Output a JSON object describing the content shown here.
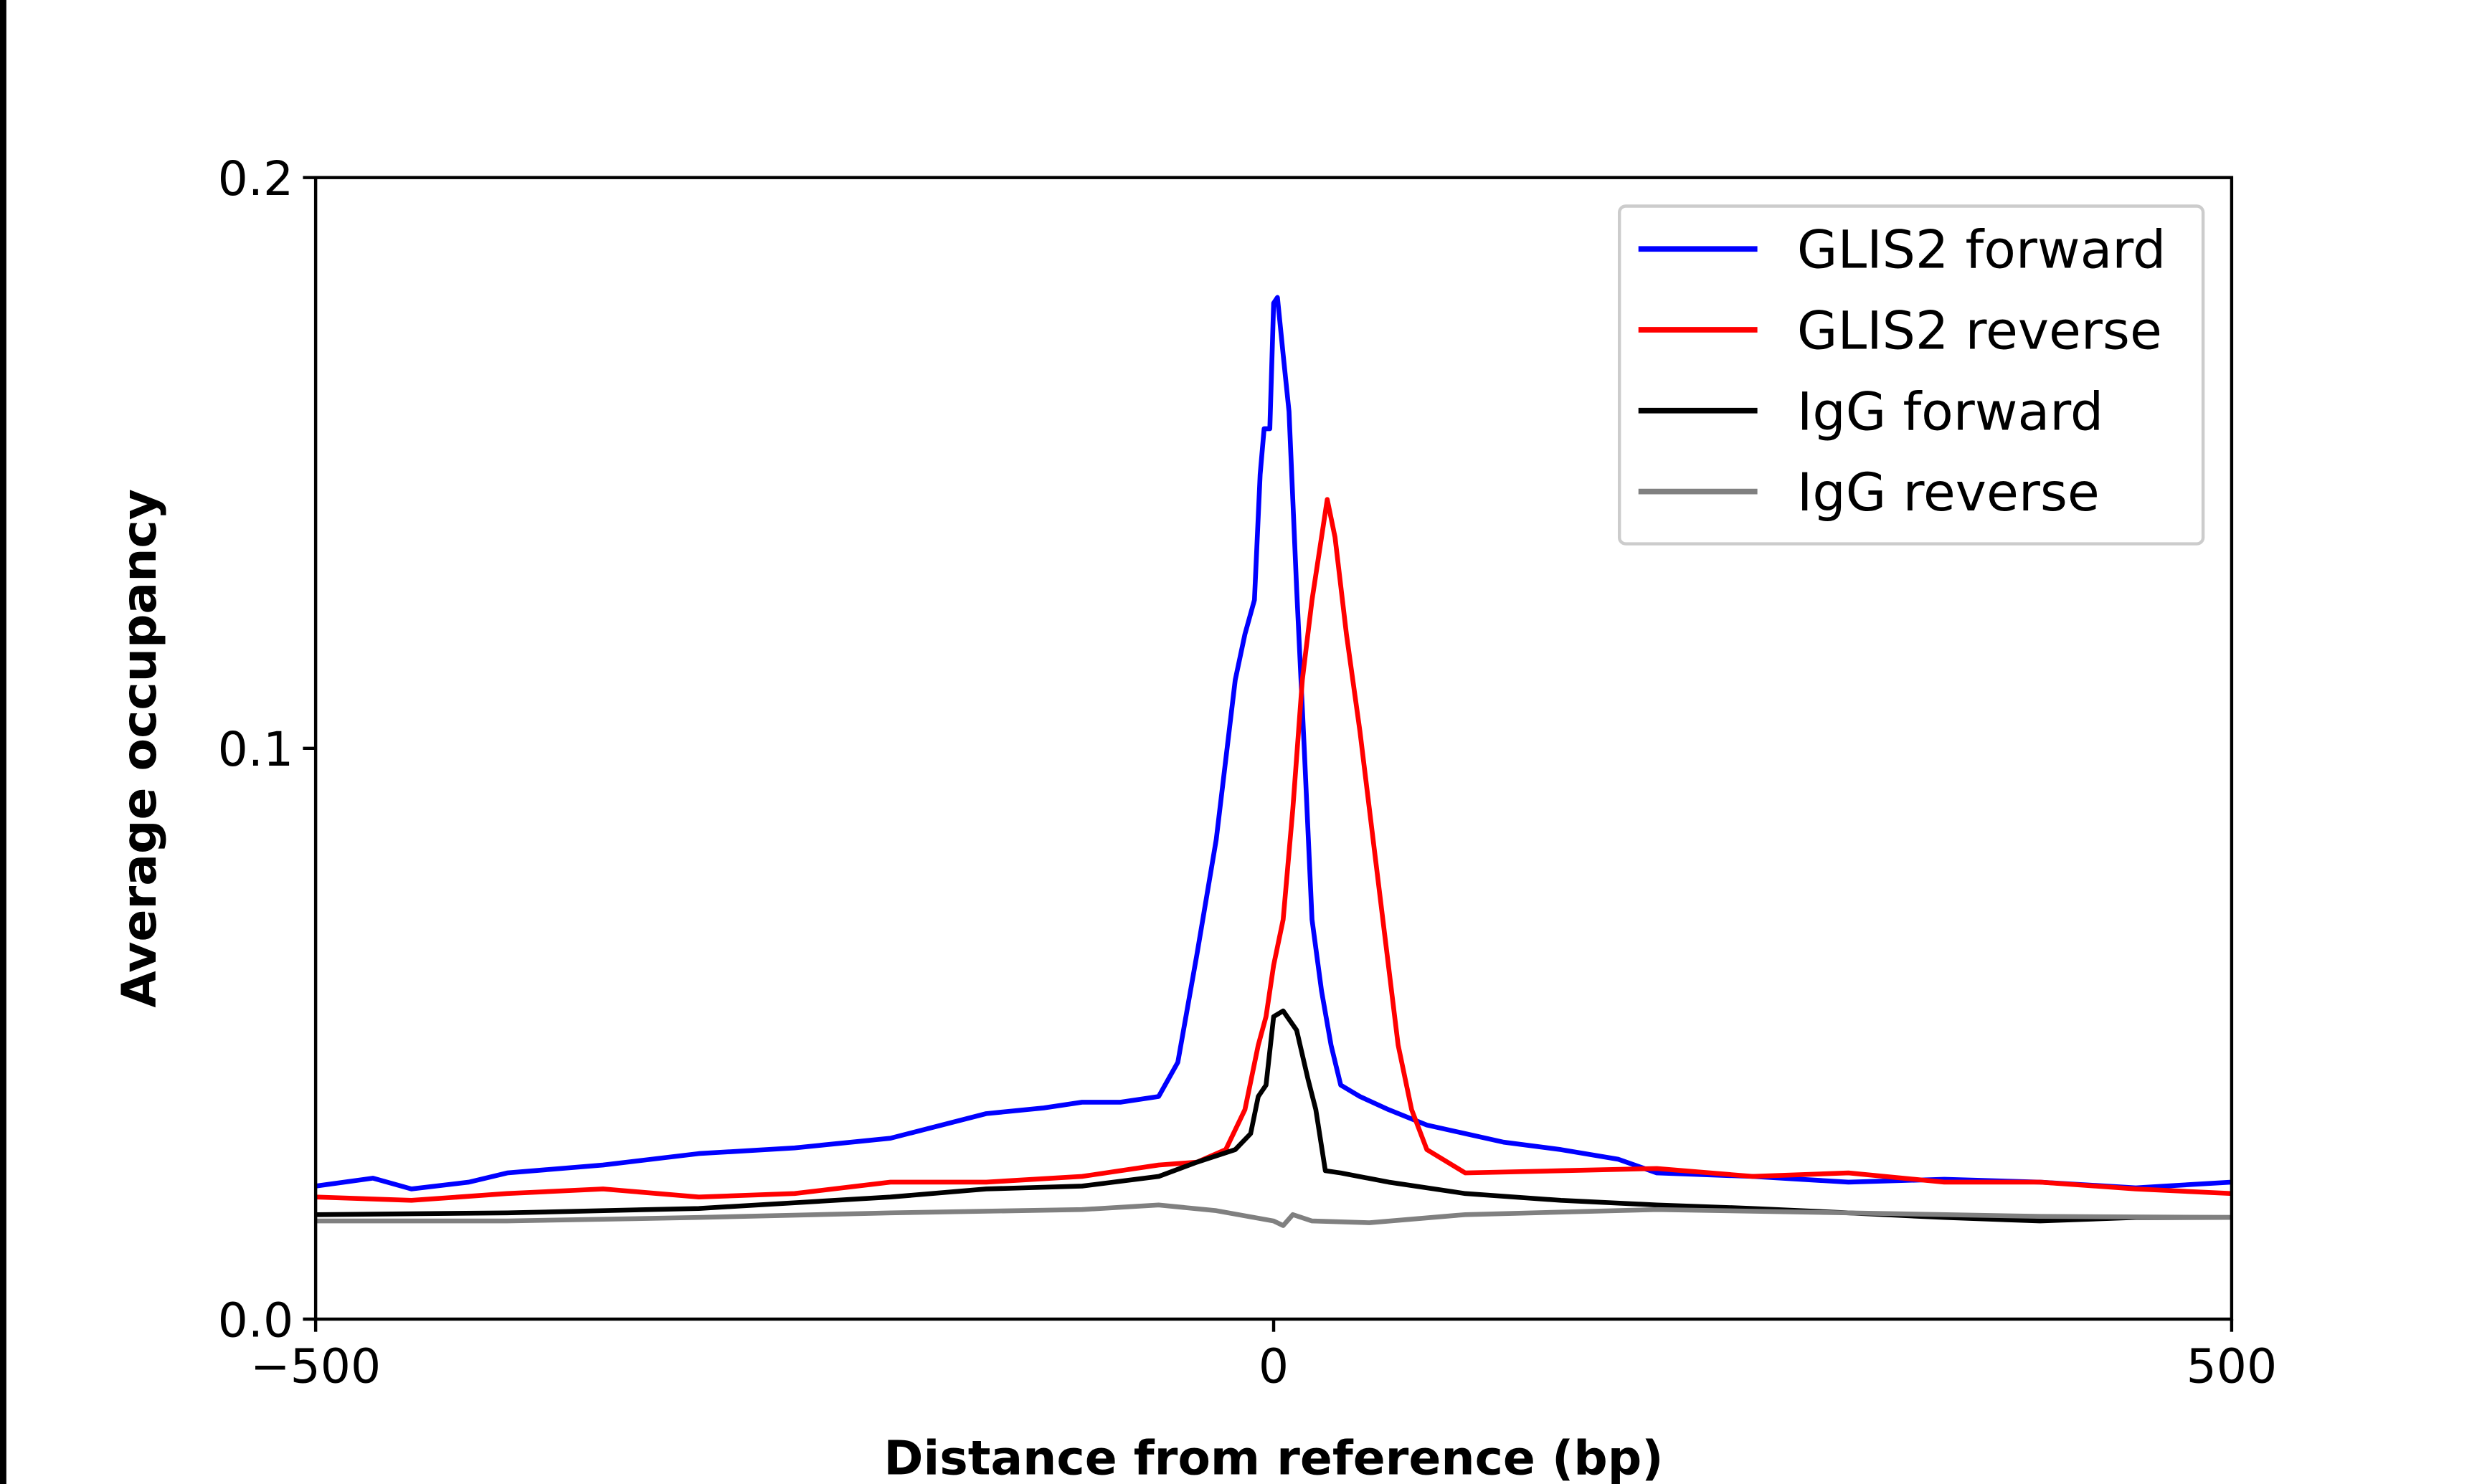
{
  "chart_data": {
    "type": "line",
    "title": "",
    "xlabel": "Distance from reference (bp)",
    "ylabel": "Average occupancy",
    "xlim": [
      -500,
      500
    ],
    "ylim": [
      0,
      0.2
    ],
    "xticks": [
      {
        "value": -500,
        "label": "−500"
      },
      {
        "value": 0,
        "label": "0"
      },
      {
        "value": 500,
        "label": "500"
      }
    ],
    "yticks": [
      {
        "value": 0,
        "label": "0.0"
      },
      {
        "value": 0.1,
        "label": "0.1"
      },
      {
        "value": 0.2,
        "label": "0.2"
      }
    ],
    "grid": false,
    "legend_position": "top-right",
    "series": [
      {
        "name": "GLIS2 forward",
        "color": "#0000ff",
        "x": [
          -500,
          -470,
          -450,
          -420,
          -400,
          -350,
          -300,
          -250,
          -200,
          -150,
          -120,
          -100,
          -80,
          -60,
          -50,
          -40,
          -30,
          -20,
          -15,
          -10,
          -7,
          -5,
          -2,
          0,
          2,
          5,
          8,
          12,
          16,
          20,
          25,
          30,
          35,
          45,
          60,
          80,
          100,
          120,
          150,
          180,
          200,
          250,
          300,
          350,
          400,
          450,
          500
        ],
        "y": [
          0.0233,
          0.0247,
          0.0228,
          0.024,
          0.0256,
          0.027,
          0.029,
          0.03,
          0.0317,
          0.036,
          0.037,
          0.038,
          0.038,
          0.039,
          0.045,
          0.064,
          0.084,
          0.112,
          0.12,
          0.126,
          0.148,
          0.156,
          0.156,
          0.178,
          0.179,
          0.169,
          0.159,
          0.128,
          0.1,
          0.07,
          0.0575,
          0.048,
          0.041,
          0.039,
          0.0367,
          0.034,
          0.0325,
          0.031,
          0.0297,
          0.028,
          0.0256,
          0.025,
          0.024,
          0.0245,
          0.024,
          0.023,
          0.024
        ]
      },
      {
        "name": "GLIS2 reverse",
        "color": "#ff0000",
        "x": [
          -500,
          -450,
          -400,
          -350,
          -300,
          -250,
          -200,
          -150,
          -100,
          -60,
          -40,
          -25,
          -15,
          -8,
          -4,
          0,
          5,
          10,
          15,
          20,
          25,
          28,
          32,
          38,
          45,
          55,
          65,
          72,
          80,
          100,
          150,
          200,
          250,
          300,
          350,
          400,
          450,
          500
        ],
        "y": [
          0.0214,
          0.0208,
          0.022,
          0.0228,
          0.0214,
          0.022,
          0.024,
          0.024,
          0.025,
          0.027,
          0.0275,
          0.0297,
          0.0367,
          0.048,
          0.053,
          0.062,
          0.07,
          0.0894,
          0.112,
          0.126,
          0.137,
          0.1436,
          0.137,
          0.12,
          0.103,
          0.0756,
          0.048,
          0.0367,
          0.0297,
          0.0256,
          0.026,
          0.0264,
          0.025,
          0.0256,
          0.024,
          0.024,
          0.0228,
          0.022
        ]
      },
      {
        "name": "IgG forward",
        "color": "#000000",
        "x": [
          -500,
          -400,
          -300,
          -200,
          -150,
          -100,
          -60,
          -40,
          -20,
          -12,
          -8,
          -4,
          0,
          5,
          12,
          18,
          22,
          27,
          35,
          60,
          100,
          150,
          200,
          250,
          300,
          350,
          400,
          450,
          500
        ],
        "y": [
          0.0183,
          0.0186,
          0.0194,
          0.0214,
          0.0228,
          0.0233,
          0.025,
          0.0275,
          0.0297,
          0.0325,
          0.039,
          0.041,
          0.053,
          0.054,
          0.0506,
          0.042,
          0.0367,
          0.026,
          0.0256,
          0.024,
          0.022,
          0.0208,
          0.02,
          0.0194,
          0.0186,
          0.0178,
          0.0172,
          0.0178,
          0.0178
        ]
      },
      {
        "name": "IgG reverse",
        "color": "#808080",
        "x": [
          -500,
          -400,
          -300,
          -200,
          -100,
          -60,
          -30,
          0,
          5,
          10,
          20,
          50,
          100,
          200,
          300,
          400,
          500
        ],
        "y": [
          0.0172,
          0.0172,
          0.0178,
          0.0186,
          0.0192,
          0.02,
          0.019,
          0.0172,
          0.0164,
          0.0183,
          0.0172,
          0.0169,
          0.0183,
          0.0192,
          0.0186,
          0.018,
          0.0178
        ]
      }
    ]
  }
}
